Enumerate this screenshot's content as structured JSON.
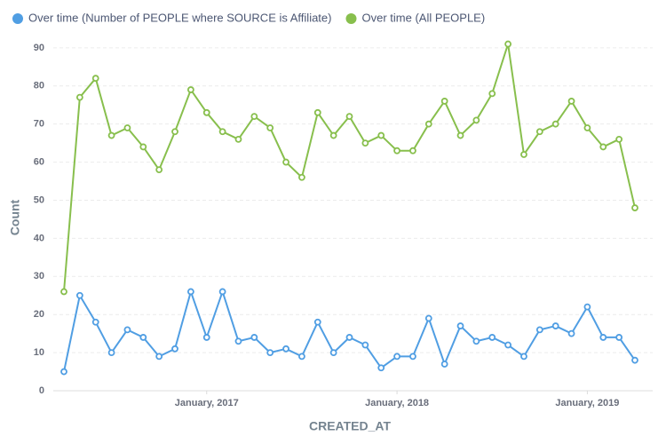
{
  "chart_data": {
    "type": "line",
    "x_label": "CREATED_AT",
    "y_label": "Count",
    "categories": [
      null,
      null,
      null,
      null,
      null,
      null,
      null,
      null,
      null,
      "January, 2017",
      null,
      null,
      null,
      null,
      null,
      null,
      null,
      null,
      null,
      null,
      null,
      "January, 2018",
      null,
      null,
      null,
      null,
      null,
      null,
      null,
      null,
      null,
      null,
      null,
      "January, 2019",
      null,
      null,
      null
    ],
    "series": [
      {
        "name": "Over time (Number of PEOPLE where SOURCE is Affiliate)",
        "color": "#509ee3",
        "values": [
          5,
          25,
          18,
          10,
          16,
          14,
          9,
          11,
          26,
          14,
          26,
          13,
          14,
          10,
          11,
          9,
          18,
          10,
          14,
          12,
          6,
          9,
          9,
          19,
          7,
          17,
          13,
          14,
          12,
          9,
          16,
          17,
          15,
          22,
          14,
          14,
          8
        ]
      },
      {
        "name": "Over time (All PEOPLE)",
        "color": "#88bf4d",
        "values": [
          26,
          77,
          82,
          67,
          69,
          64,
          58,
          68,
          79,
          73,
          68,
          66,
          72,
          69,
          60,
          56,
          73,
          67,
          72,
          65,
          67,
          63,
          63,
          70,
          76,
          67,
          71,
          78,
          91,
          62,
          68,
          70,
          76,
          69,
          64,
          66,
          48
        ]
      }
    ],
    "ylim": [
      0,
      93
    ],
    "yticks": [
      0,
      10,
      20,
      30,
      40,
      50,
      60,
      70,
      80,
      90
    ],
    "grid": true,
    "legend": "top"
  }
}
